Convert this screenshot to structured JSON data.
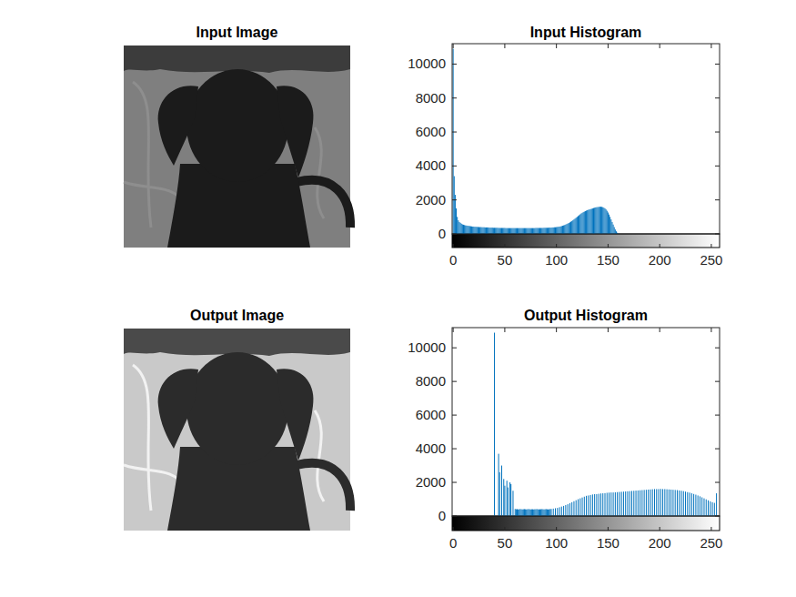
{
  "chart_data": [
    {
      "type": "image",
      "title": "Input Image"
    },
    {
      "type": "histogram",
      "title": "Input Histogram",
      "color": "#0072bd",
      "xlim": [
        -1,
        258
      ],
      "ylim": [
        0,
        11200
      ],
      "xticks": [
        0,
        50,
        100,
        150,
        200,
        250
      ],
      "yticks": [
        0,
        2000,
        4000,
        6000,
        8000,
        10000
      ],
      "bins": [
        -0.5,
        0.5,
        1.5,
        2.5,
        3.5,
        4.5,
        5.5,
        6.5,
        7.5,
        8.5,
        9.5,
        10.5,
        11.5,
        12.5,
        13.5,
        14.5,
        15.5,
        16.5,
        17.5,
        18.5,
        19.5,
        20.5,
        21.5,
        22.5,
        23.5,
        24.5,
        25.5,
        26.5,
        27.5,
        28.5,
        29.5,
        30.5,
        31.5,
        32.5,
        33.5,
        34.5,
        35.5,
        36.5,
        37.5,
        38.5,
        39.5,
        40.5,
        41.5,
        42.5,
        43.5,
        44.5,
        45.5,
        46.5,
        47.5,
        48.5,
        49.5,
        50.5,
        51.5,
        52.5,
        53.5,
        54.5,
        55.5,
        56.5,
        57.5,
        58.5,
        59.5,
        60.5,
        61.5,
        62.5,
        63.5,
        64.5,
        65.5,
        66.5,
        67.5,
        68.5,
        69.5,
        70.5,
        71.5,
        72.5,
        73.5,
        74.5,
        75.5,
        76.5,
        77.5,
        78.5,
        79.5,
        80.5,
        81.5,
        82.5,
        83.5,
        84.5,
        85.5,
        86.5,
        87.5,
        88.5,
        89.5,
        90.5,
        91.5,
        92.5,
        93.5,
        94.5,
        95.5,
        96.5,
        97.5,
        98.5,
        99.5,
        100.5,
        101.5,
        102.5,
        103.5,
        104.5,
        105.5,
        106.5,
        107.5,
        108.5,
        109.5,
        110.5,
        111.5,
        112.5,
        113.5,
        114.5,
        115.5,
        116.5,
        117.5,
        118.5,
        119.5,
        120.5,
        121.5,
        122.5,
        123.5,
        124.5,
        125.5,
        126.5,
        127.5,
        128.5,
        129.5,
        130.5,
        131.5,
        132.5,
        133.5,
        134.5,
        135.5,
        136.5,
        137.5,
        138.5,
        139.5,
        140.5,
        141.5,
        142.5,
        143.5,
        144.5,
        145.5,
        146.5,
        147.5,
        148.5,
        149.5,
        150.5,
        151.5,
        152.5,
        153.5,
        154.5,
        155.5,
        156.5,
        157.5,
        158.5,
        159.5,
        160.5,
        161.5,
        162.5,
        163.5,
        164.5,
        165.5,
        166.5,
        167.5,
        168.5,
        169.5,
        170.5,
        171.5,
        172.5,
        173.5,
        174.5,
        175.5,
        176.5,
        177.5,
        178.5,
        179.5,
        180.5,
        181.5,
        182.5,
        183.5,
        184.5,
        185.5,
        186.5,
        187.5,
        188.5,
        189.5,
        190.5,
        191.5,
        192.5,
        193.5,
        194.5,
        195.5,
        196.5,
        197.5,
        198.5,
        199.5,
        200.5,
        201.5,
        202.5,
        203.5,
        204.5,
        205.5,
        206.5,
        207.5,
        208.5,
        209.5,
        210.5,
        211.5,
        212.5,
        213.5,
        214.5,
        215.5,
        216.5,
        217.5,
        218.5,
        219.5,
        220.5,
        221.5,
        222.5,
        223.5,
        224.5,
        225.5,
        226.5,
        227.5,
        228.5,
        229.5,
        230.5,
        231.5,
        232.5,
        233.5,
        234.5,
        235.5,
        236.5,
        237.5,
        238.5,
        239.5,
        240.5,
        241.5,
        242.5,
        243.5,
        244.5,
        245.5,
        246.5,
        247.5,
        248.5,
        249.5,
        250.5,
        251.5,
        252.5,
        253.5,
        254.5,
        255.5
      ],
      "values": [
        10900,
        3400,
        2300,
        1500,
        1000,
        800,
        700,
        650,
        600,
        560,
        540,
        520,
        500,
        490,
        480,
        470,
        460,
        450,
        440,
        430,
        430,
        420,
        420,
        410,
        410,
        400,
        400,
        400,
        390,
        390,
        390,
        380,
        380,
        380,
        380,
        370,
        370,
        370,
        370,
        360,
        360,
        360,
        360,
        360,
        350,
        350,
        350,
        350,
        350,
        350,
        350,
        340,
        340,
        340,
        340,
        340,
        340,
        340,
        340,
        340,
        340,
        340,
        340,
        340,
        340,
        340,
        340,
        340,
        340,
        340,
        340,
        340,
        340,
        340,
        340,
        340,
        340,
        340,
        340,
        340,
        350,
        350,
        350,
        350,
        350,
        350,
        350,
        350,
        360,
        360,
        360,
        360,
        360,
        370,
        370,
        370,
        380,
        380,
        390,
        390,
        400,
        410,
        420,
        430,
        440,
        460,
        480,
        500,
        520,
        550,
        580,
        610,
        640,
        680,
        720,
        760,
        800,
        850,
        900,
        950,
        1000,
        1050,
        1100,
        1150,
        1200,
        1240,
        1280,
        1310,
        1340,
        1370,
        1400,
        1420,
        1440,
        1460,
        1480,
        1500,
        1520,
        1540,
        1560,
        1570,
        1580,
        1590,
        1600,
        1600,
        1590,
        1570,
        1540,
        1500,
        1440,
        1360,
        1260,
        1140,
        1000,
        850,
        700,
        550,
        400,
        260,
        150,
        70,
        20,
        0,
        0,
        0,
        0,
        0,
        0,
        0,
        0,
        0,
        0,
        0,
        0,
        0,
        0,
        0,
        0,
        0,
        0,
        0,
        0,
        0,
        0,
        0,
        0,
        0,
        0,
        0,
        0,
        0,
        0,
        0,
        0,
        0,
        0,
        0,
        0,
        0,
        0,
        0,
        0,
        0,
        0,
        0,
        0,
        0,
        0,
        0,
        0,
        0,
        0,
        0,
        0,
        0,
        0,
        0,
        0,
        0,
        0,
        0,
        0,
        0,
        0,
        0,
        0,
        0,
        0,
        0,
        0,
        0,
        0,
        0,
        0,
        0,
        0,
        0,
        0,
        0,
        0,
        0,
        0,
        0,
        0,
        0,
        0,
        0,
        0,
        0,
        0,
        0,
        0,
        0,
        0,
        0,
        0,
        0
      ]
    },
    {
      "type": "image",
      "title": "Output Image"
    },
    {
      "type": "histogram",
      "title": "Output Histogram",
      "color": "#0072bd",
      "xlim": [
        -1,
        258
      ],
      "ylim": [
        0,
        11200
      ],
      "xticks": [
        0,
        50,
        100,
        150,
        200,
        250
      ],
      "yticks": [
        0,
        2000,
        4000,
        6000,
        8000,
        10000
      ],
      "bins": [
        -0.5,
        0.5,
        1.5,
        2.5,
        3.5,
        4.5,
        5.5,
        6.5,
        7.5,
        8.5,
        9.5,
        10.5,
        11.5,
        12.5,
        13.5,
        14.5,
        15.5,
        16.5,
        17.5,
        18.5,
        19.5,
        20.5,
        21.5,
        22.5,
        23.5,
        24.5,
        25.5,
        26.5,
        27.5,
        28.5,
        29.5,
        30.5,
        31.5,
        32.5,
        33.5,
        34.5,
        35.5,
        36.5,
        37.5,
        38.5,
        39.5,
        40.5,
        41.5,
        42.5,
        43.5,
        44.5,
        45.5,
        46.5,
        47.5,
        48.5,
        49.5,
        50.5,
        51.5,
        52.5,
        53.5,
        54.5,
        55.5,
        56.5,
        57.5,
        58.5,
        59.5,
        60.5,
        61.5,
        62.5,
        63.5,
        64.5,
        65.5,
        66.5,
        67.5,
        68.5,
        69.5,
        70.5,
        71.5,
        72.5,
        73.5,
        74.5,
        75.5,
        76.5,
        77.5,
        78.5,
        79.5,
        80.5,
        81.5,
        82.5,
        83.5,
        84.5,
        85.5,
        86.5,
        87.5,
        88.5,
        89.5,
        90.5,
        91.5,
        92.5,
        93.5,
        94.5,
        95.5,
        96.5,
        97.5,
        98.5,
        99.5,
        100.5,
        101.5,
        102.5,
        103.5,
        104.5,
        105.5,
        106.5,
        107.5,
        108.5,
        109.5,
        110.5,
        111.5,
        112.5,
        113.5,
        114.5,
        115.5,
        116.5,
        117.5,
        118.5,
        119.5,
        120.5,
        121.5,
        122.5,
        123.5,
        124.5,
        125.5,
        126.5,
        127.5,
        128.5,
        129.5,
        130.5,
        131.5,
        132.5,
        133.5,
        134.5,
        135.5,
        136.5,
        137.5,
        138.5,
        139.5,
        140.5,
        141.5,
        142.5,
        143.5,
        144.5,
        145.5,
        146.5,
        147.5,
        148.5,
        149.5,
        150.5,
        151.5,
        152.5,
        153.5,
        154.5,
        155.5,
        156.5,
        157.5,
        158.5,
        159.5,
        160.5,
        161.5,
        162.5,
        163.5,
        164.5,
        165.5,
        166.5,
        167.5,
        168.5,
        169.5,
        170.5,
        171.5,
        172.5,
        173.5,
        174.5,
        175.5,
        176.5,
        177.5,
        178.5,
        179.5,
        180.5,
        181.5,
        182.5,
        183.5,
        184.5,
        185.5,
        186.5,
        187.5,
        188.5,
        189.5,
        190.5,
        191.5,
        192.5,
        193.5,
        194.5,
        195.5,
        196.5,
        197.5,
        198.5,
        199.5,
        200.5,
        201.5,
        202.5,
        203.5,
        204.5,
        205.5,
        206.5,
        207.5,
        208.5,
        209.5,
        210.5,
        211.5,
        212.5,
        213.5,
        214.5,
        215.5,
        216.5,
        217.5,
        218.5,
        219.5,
        220.5,
        221.5,
        222.5,
        223.5,
        224.5,
        225.5,
        226.5,
        227.5,
        228.5,
        229.5,
        230.5,
        231.5,
        232.5,
        233.5,
        234.5,
        235.5,
        236.5,
        237.5,
        238.5,
        239.5,
        240.5,
        241.5,
        242.5,
        243.5,
        244.5,
        245.5,
        246.5,
        247.5,
        248.5,
        249.5,
        250.5,
        251.5,
        252.5,
        253.5,
        254.5,
        255.5
      ],
      "values": [
        0,
        0,
        0,
        0,
        0,
        0,
        0,
        0,
        0,
        0,
        0,
        0,
        0,
        0,
        0,
        0,
        0,
        0,
        0,
        0,
        0,
        0,
        0,
        0,
        0,
        0,
        0,
        0,
        0,
        0,
        0,
        0,
        0,
        0,
        0,
        0,
        0,
        0,
        0,
        0,
        10900,
        0,
        0,
        0,
        3700,
        2600,
        0,
        3000,
        0,
        2200,
        1800,
        0,
        2100,
        1700,
        0,
        2000,
        1900,
        0,
        1500,
        0,
        420,
        400,
        410,
        390,
        400,
        410,
        400,
        390,
        400,
        410,
        400,
        390,
        400,
        410,
        400,
        390,
        400,
        400,
        390,
        400,
        400,
        410,
        400,
        390,
        400,
        400,
        410,
        400,
        390,
        400,
        410,
        400,
        390,
        400,
        410,
        420,
        0,
        440,
        0,
        460,
        0,
        480,
        0,
        520,
        0,
        560,
        0,
        600,
        0,
        650,
        0,
        700,
        0,
        760,
        0,
        820,
        0,
        880,
        0,
        940,
        0,
        1000,
        0,
        1050,
        0,
        1100,
        0,
        1150,
        0,
        1200,
        0,
        1220,
        0,
        1250,
        0,
        1280,
        0,
        1300,
        0,
        1300,
        0,
        1320,
        0,
        1340,
        0,
        1350,
        0,
        1360,
        0,
        1380,
        0,
        1390,
        0,
        1400,
        0,
        1400,
        0,
        1410,
        0,
        1420,
        0,
        1430,
        0,
        1440,
        0,
        1450,
        0,
        1460,
        0,
        1470,
        0,
        1480,
        0,
        1490,
        0,
        1500,
        0,
        1510,
        0,
        1520,
        0,
        1530,
        0,
        1540,
        0,
        1550,
        0,
        1560,
        0,
        1570,
        0,
        1580,
        0,
        1590,
        0,
        1600,
        0,
        1600,
        0,
        1600,
        0,
        1610,
        0,
        1600,
        0,
        1600,
        0,
        1590,
        0,
        1580,
        0,
        1570,
        0,
        1560,
        0,
        1550,
        0,
        1540,
        0,
        1520,
        0,
        1500,
        0,
        1480,
        0,
        1450,
        0,
        1420,
        0,
        1390,
        0,
        1350,
        0,
        1310,
        0,
        1270,
        0,
        1220,
        0,
        1170,
        0,
        1110,
        0,
        1050,
        0,
        990,
        0,
        930,
        0,
        870,
        0,
        820,
        0,
        780,
        0,
        1350
      ]
    }
  ]
}
